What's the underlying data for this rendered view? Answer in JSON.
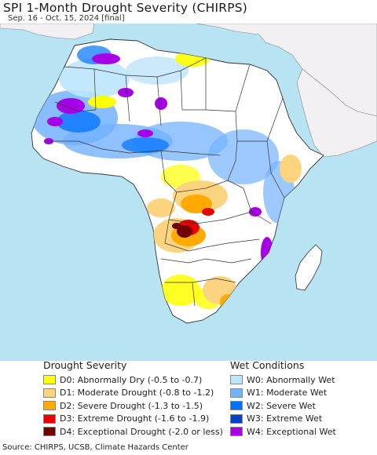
{
  "header": {
    "title": "SPI 1-Month Drought Severity (CHIRPS)",
    "subtitle": "Sep. 16 - Oct. 15, 2024 [final]"
  },
  "legend": {
    "drought": {
      "title": "Drought Severity",
      "items": [
        {
          "label": "D0: Abnormally Dry (-0.5 to -0.7)",
          "color": "#ffff00"
        },
        {
          "label": "D1: Moderate Drought (-0.8 to -1.2)",
          "color": "#fcd37f"
        },
        {
          "label": "D2: Severe Drought (-1.3 to -1.5)",
          "color": "#ffaa00"
        },
        {
          "label": "D3: Extreme Drought (-1.6 to -1.9)",
          "color": "#e60000"
        },
        {
          "label": "D4: Exceptional Drought (-2.0 or less)",
          "color": "#730000"
        }
      ]
    },
    "wet": {
      "title": "Wet Conditions",
      "items": [
        {
          "label": "W0: Abnormally Wet",
          "color": "#bde5fb"
        },
        {
          "label": "W1: Moderate Wet",
          "color": "#73b2ff"
        },
        {
          "label": "W2: Severe Wet",
          "color": "#0070ff"
        },
        {
          "label": "W3: Extreme Wet",
          "color": "#0044c0"
        },
        {
          "label": "W4: Exceptional Wet",
          "color": "#a800e6"
        }
      ]
    }
  },
  "map": {
    "colors": {
      "ocean": "#b7e3f3",
      "land": "#ffffff",
      "outside_region": "#f2f0f3",
      "border": "#333333"
    }
  },
  "footer": {
    "source": "Source: CHIRPS, UCSB, Climate Hazards Center"
  }
}
